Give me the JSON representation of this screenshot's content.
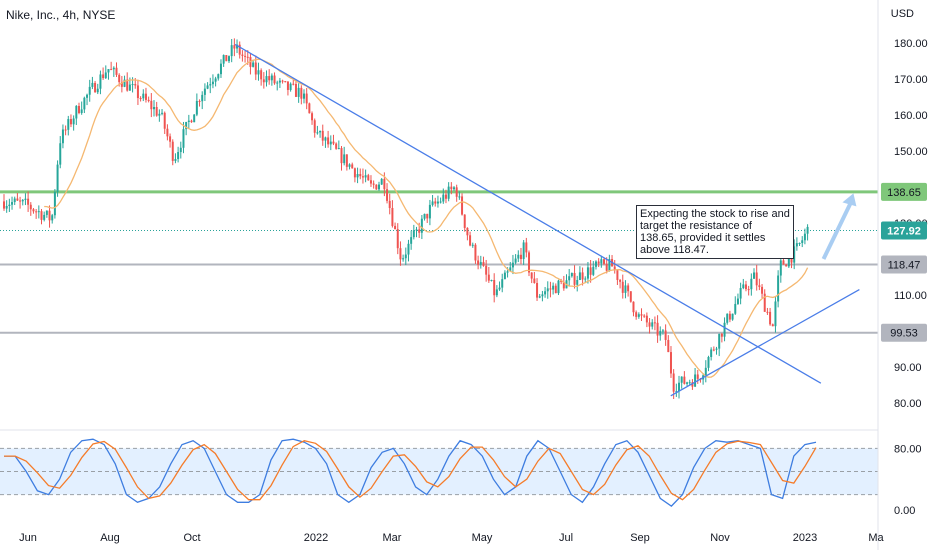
{
  "header": {
    "symbol_title": "Nike, Inc., 4h, NYSE",
    "currency": "USD"
  },
  "annotation": {
    "text": "Expecting the stock to rise and target the resistance of 138.65, provided it settles above 118.47."
  },
  "colors": {
    "up": "#26a69a",
    "down": "#ef5350",
    "ma": "#f5b871",
    "trendline": "#4a7de8",
    "resistance": "#7fc77a",
    "support": "#b2b5be",
    "current": "#2aa39a",
    "stoch_k": "#3e7de0",
    "stoch_d": "#f57c2a",
    "stoch_band": "#e3f0ff",
    "arrow": "#a9cdf2"
  },
  "chart_data": [
    {
      "type": "line",
      "title": "Nike, Inc., 4h, NYSE",
      "ylabel": "USD",
      "ylim": [
        75,
        185
      ],
      "y_ticks": [
        "180.00",
        "170.00",
        "160.00",
        "150.00",
        "130.00",
        "110.00",
        "90.00",
        "80.00"
      ],
      "x_ticks": [
        "Jun",
        "Aug",
        "Oct",
        "2022",
        "Mar",
        "May",
        "Jul",
        "Sep",
        "Nov",
        "2023",
        "Ma"
      ],
      "series": [
        {
          "x": [
            "2021-05-15",
            "2021-06-01",
            "2021-06-20",
            "2021-06-26",
            "2021-07-10",
            "2021-08-01",
            "2021-08-20",
            "2021-09-10",
            "2021-09-20",
            "2021-10-10",
            "2021-11-05",
            "2021-11-20",
            "2021-12-10",
            "2021-12-25",
            "2022-01-05",
            "2022-01-25",
            "2022-02-15",
            "2022-02-25",
            "2022-03-10",
            "2022-04-01",
            "2022-04-20",
            "2022-05-01",
            "2022-05-20",
            "2022-06-10",
            "2022-06-20",
            "2022-07-15",
            "2022-08-05",
            "2022-08-16",
            "2022-09-05",
            "2022-09-25",
            "2022-10-01",
            "2022-10-20",
            "2022-11-05",
            "2022-11-20",
            "2022-12-01",
            "2022-12-15",
            "2022-12-20",
            "2023-01-01",
            "2023-01-10"
          ],
          "values": [
            136,
            135,
            131,
            153,
            162,
            173,
            167,
            160,
            148,
            166,
            179,
            172,
            168,
            166,
            155,
            148,
            140,
            142,
            120,
            134,
            140,
            124,
            110,
            123,
            110,
            114,
            118,
            118,
            104,
            98,
            85,
            87,
            99,
            110,
            115,
            101,
            118,
            122,
            128
          ]
        }
      ],
      "annotations": {
        "resistance": 138.65,
        "support_upper": 118.47,
        "support_lower": 99.53,
        "last_price": 127.92
      }
    },
    {
      "type": "line",
      "title": "",
      "ylim": [
        0,
        100
      ],
      "y_ticks": [
        "80.00",
        "0.00"
      ],
      "levels": [
        80,
        50,
        20
      ],
      "series": [
        {
          "name": "",
          "values": [
            70,
            70,
            50,
            25,
            20,
            40,
            75,
            90,
            92,
            85,
            60,
            20,
            10,
            15,
            30,
            60,
            85,
            90,
            80,
            50,
            20,
            10,
            10,
            20,
            65,
            90,
            92,
            88,
            80,
            60,
            20,
            10,
            20,
            55,
            75,
            80,
            60,
            30,
            20,
            40,
            70,
            90,
            85,
            70,
            40,
            20,
            30,
            70,
            90,
            80,
            50,
            20,
            10,
            30,
            60,
            85,
            90,
            75,
            45,
            15,
            5,
            20,
            55,
            80,
            90,
            88,
            90,
            85,
            80,
            20,
            15,
            70,
            85,
            88
          ]
        }
      ]
    }
  ],
  "labels": {
    "price_tags": [
      {
        "value": "138.65",
        "kind": "resistance"
      },
      {
        "value": "127.92",
        "kind": "current"
      },
      {
        "value": "118.47",
        "kind": "support"
      },
      {
        "value": "99.53",
        "kind": "support"
      }
    ],
    "stoch_tick_80": "80.00",
    "stoch_tick_0": "0.00"
  }
}
